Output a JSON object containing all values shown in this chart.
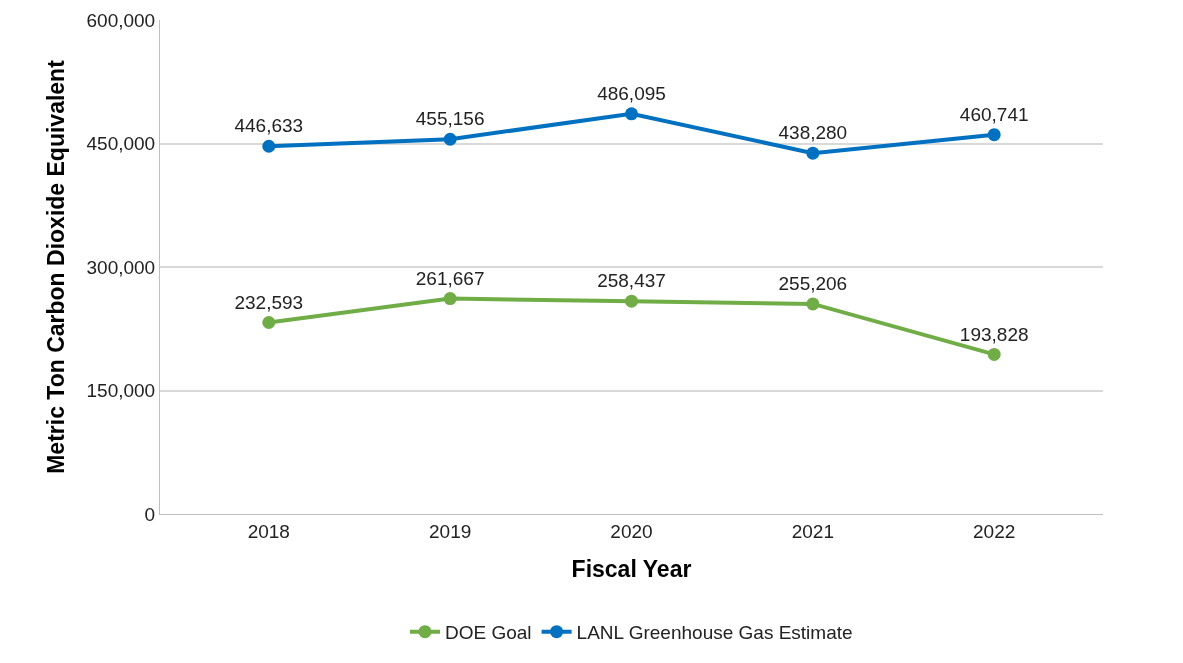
{
  "chart_data": {
    "type": "line",
    "xlabel": "Fiscal Year",
    "ylabel": "Metric Ton Carbon Dioxide Equivalent",
    "categories": [
      "2018",
      "2019",
      "2020",
      "2021",
      "2022"
    ],
    "series": [
      {
        "name": "DOE Goal",
        "color": "#70ad47",
        "values": [
          232593,
          261667,
          258437,
          255206,
          193828
        ],
        "value_labels": [
          "232,593",
          "261,667",
          "258,437",
          "255,206",
          "193,828"
        ]
      },
      {
        "name": "LANL Greenhouse Gas Estimate",
        "color": "#0070c0",
        "values": [
          446633,
          455156,
          486095,
          438280,
          460741
        ],
        "value_labels": [
          "446,633",
          "455,156",
          "486,095",
          "438,280",
          "460,741"
        ]
      }
    ],
    "ylim": [
      0,
      600000
    ],
    "yticks": [
      {
        "value": 0,
        "label": "0"
      },
      {
        "value": 150000,
        "label": "150,000"
      },
      {
        "value": 300000,
        "label": "300,000"
      },
      {
        "value": 450000,
        "label": "450,000"
      },
      {
        "value": 600000,
        "label": "600,000"
      }
    ],
    "grid": "y",
    "legend": "bottom",
    "marker": "circle",
    "line_style": "solid"
  }
}
